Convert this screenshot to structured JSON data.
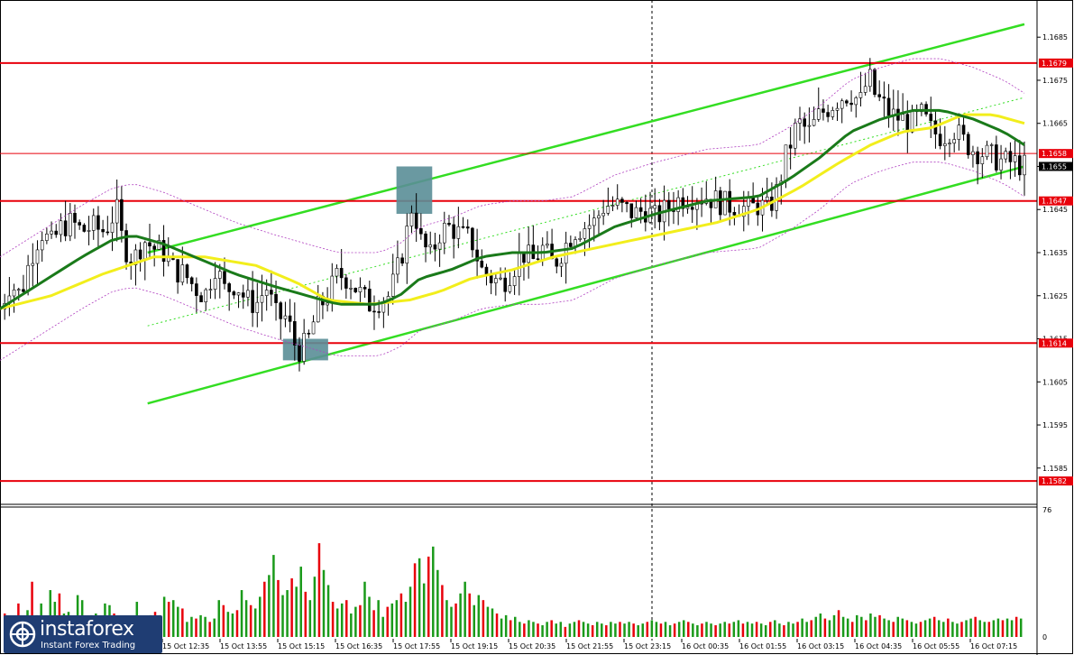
{
  "chart_data": {
    "type": "candlestick",
    "symbol_hint": "",
    "price_axis": {
      "min": 1.1577,
      "max": 1.1693,
      "ticks": [
        "1.1685",
        "1.1675",
        "1.1665",
        "1.1655",
        "1.1645",
        "1.1635",
        "1.1625",
        "1.1615",
        "1.1605",
        "1.1595",
        "1.1585"
      ]
    },
    "volume_axis": {
      "min": 0,
      "max": 76,
      "ticks": [
        "76",
        "0"
      ]
    },
    "time_labels": [
      "15 Oct 12:35",
      "15 Oct 13:55",
      "15 Oct 15:15",
      "15 Oct 16:35",
      "15 Oct 17:55",
      "15 Oct 19:15",
      "15 Oct 20:35",
      "15 Oct 21:55",
      "15 Oct 23:15",
      "16 Oct 00:35",
      "16 Oct 01:55",
      "16 Oct 03:15",
      "16 Oct 04:35",
      "16 Oct 05:55",
      "16 Oct 07:15"
    ],
    "horizontal_levels": [
      {
        "value": 1.1679,
        "label": "1.1679",
        "color": "#e8000b"
      },
      {
        "value": 1.1658,
        "label": "1.1658",
        "color": "#e8000b",
        "thin": true
      },
      {
        "value": 1.1647,
        "label": "1.1647",
        "color": "#e8000b"
      },
      {
        "value": 1.1614,
        "label": "1.1614",
        "color": "#e8000b"
      },
      {
        "value": 1.1582,
        "label": "1.1582",
        "color": "#e8000b"
      }
    ],
    "current_price": {
      "value": 1.1655,
      "label": "1.1655"
    },
    "channel": {
      "color": "#33dd22",
      "upper": [
        [
          0.1441,
          1.1635
        ],
        [
          1.0,
          1.1688
        ]
      ],
      "lower": [
        [
          0.1441,
          1.16
        ],
        [
          1.0,
          1.1655
        ]
      ],
      "mid_dotted": [
        [
          0.1441,
          1.1618
        ],
        [
          1.0,
          1.1671
        ]
      ]
    },
    "signal_zones": [
      {
        "x_frac": [
          0.387,
          0.4219
        ],
        "price": [
          1.1644,
          1.1655
        ],
        "color": "#5a8e97"
      },
      {
        "x_frac": [
          0.2762,
          0.3203
        ],
        "price": [
          1.161,
          1.1615
        ],
        "color": "#5a8e97"
      }
    ],
    "close_path": [
      [
        0.0,
        1.1622
      ],
      [
        0.01,
        1.1628
      ],
      [
        0.02,
        1.1625
      ],
      [
        0.03,
        1.1634
      ],
      [
        0.04,
        1.164
      ],
      [
        0.05,
        1.1637
      ],
      [
        0.06,
        1.1641
      ],
      [
        0.07,
        1.1642
      ],
      [
        0.08,
        1.164
      ],
      [
        0.09,
        1.1641
      ],
      [
        0.1,
        1.164
      ],
      [
        0.108,
        1.1642
      ],
      [
        0.113,
        1.1646
      ],
      [
        0.12,
        1.1637
      ],
      [
        0.13,
        1.1633
      ],
      [
        0.14,
        1.1638
      ],
      [
        0.15,
        1.1636
      ],
      [
        0.16,
        1.1635
      ],
      [
        0.17,
        1.1631
      ],
      [
        0.18,
        1.163
      ],
      [
        0.19,
        1.1627
      ],
      [
        0.2,
        1.1625
      ],
      [
        0.21,
        1.1632
      ],
      [
        0.22,
        1.1626
      ],
      [
        0.23,
        1.1628
      ],
      [
        0.24,
        1.1624
      ],
      [
        0.25,
        1.1623
      ],
      [
        0.26,
        1.1627
      ],
      [
        0.27,
        1.162
      ],
      [
        0.28,
        1.162
      ],
      [
        0.29,
        1.1612
      ],
      [
        0.3,
        1.1614
      ],
      [
        0.31,
        1.1622
      ],
      [
        0.32,
        1.1625
      ],
      [
        0.33,
        1.163
      ],
      [
        0.34,
        1.1629
      ],
      [
        0.35,
        1.1626
      ],
      [
        0.36,
        1.1623
      ],
      [
        0.37,
        1.1624
      ],
      [
        0.38,
        1.1625
      ],
      [
        0.388,
        1.1631
      ],
      [
        0.395,
        1.1637
      ],
      [
        0.403,
        1.1647
      ],
      [
        0.41,
        1.1638
      ],
      [
        0.42,
        1.1634
      ],
      [
        0.43,
        1.164
      ],
      [
        0.44,
        1.1641
      ],
      [
        0.45,
        1.1639
      ],
      [
        0.46,
        1.1638
      ],
      [
        0.47,
        1.1631
      ],
      [
        0.48,
        1.1629
      ],
      [
        0.49,
        1.1628
      ],
      [
        0.5,
        1.1631
      ],
      [
        0.51,
        1.1635
      ],
      [
        0.52,
        1.1633
      ],
      [
        0.53,
        1.1636
      ],
      [
        0.54,
        1.1632
      ],
      [
        0.55,
        1.1636
      ],
      [
        0.56,
        1.164
      ],
      [
        0.57,
        1.1641
      ],
      [
        0.58,
        1.1642
      ],
      [
        0.59,
        1.1646
      ],
      [
        0.6,
        1.1646
      ],
      [
        0.61,
        1.1645
      ],
      [
        0.62,
        1.1644
      ],
      [
        0.63,
        1.1645
      ],
      [
        0.64,
        1.1643
      ],
      [
        0.65,
        1.1645
      ],
      [
        0.66,
        1.1647
      ],
      [
        0.67,
        1.1648
      ],
      [
        0.68,
        1.1648
      ],
      [
        0.69,
        1.1648
      ],
      [
        0.7,
        1.1647
      ],
      [
        0.71,
        1.1646
      ],
      [
        0.72,
        1.1646
      ],
      [
        0.73,
        1.1645
      ],
      [
        0.74,
        1.1646
      ],
      [
        0.75,
        1.1645
      ],
      [
        0.76,
        1.165
      ],
      [
        0.765,
        1.1656
      ],
      [
        0.77,
        1.1659
      ],
      [
        0.775,
        1.1663
      ],
      [
        0.78,
        1.1665
      ],
      [
        0.79,
        1.1663
      ],
      [
        0.8,
        1.1667
      ],
      [
        0.81,
        1.1669
      ],
      [
        0.82,
        1.1671
      ],
      [
        0.83,
        1.1672
      ],
      [
        0.84,
        1.167
      ],
      [
        0.848,
        1.1676
      ],
      [
        0.855,
        1.1671
      ],
      [
        0.86,
        1.167
      ],
      [
        0.87,
        1.1667
      ],
      [
        0.88,
        1.1666
      ],
      [
        0.89,
        1.1665
      ],
      [
        0.9,
        1.1667
      ],
      [
        0.91,
        1.1663
      ],
      [
        0.92,
        1.1662
      ],
      [
        0.93,
        1.1664
      ],
      [
        0.94,
        1.1661
      ],
      [
        0.95,
        1.1659
      ],
      [
        0.96,
        1.1658
      ],
      [
        0.97,
        1.1657
      ],
      [
        0.98,
        1.1656
      ],
      [
        0.99,
        1.1656
      ],
      [
        1.0,
        1.1655
      ]
    ],
    "ma_green": [
      [
        0.0,
        1.1622
      ],
      [
        0.04,
        1.1628
      ],
      [
        0.08,
        1.1634
      ],
      [
        0.11,
        1.1638
      ],
      [
        0.13,
        1.1639
      ],
      [
        0.16,
        1.1637
      ],
      [
        0.19,
        1.1634
      ],
      [
        0.23,
        1.163
      ],
      [
        0.27,
        1.1627
      ],
      [
        0.3,
        1.1625
      ],
      [
        0.33,
        1.1623
      ],
      [
        0.37,
        1.1623
      ],
      [
        0.39,
        1.1625
      ],
      [
        0.41,
        1.1629
      ],
      [
        0.44,
        1.1631
      ],
      [
        0.47,
        1.1634
      ],
      [
        0.5,
        1.1635
      ],
      [
        0.53,
        1.1635
      ],
      [
        0.56,
        1.1636
      ],
      [
        0.6,
        1.1641
      ],
      [
        0.64,
        1.1644
      ],
      [
        0.69,
        1.1647
      ],
      [
        0.74,
        1.1648
      ],
      [
        0.77,
        1.1652
      ],
      [
        0.8,
        1.1657
      ],
      [
        0.83,
        1.1663
      ],
      [
        0.86,
        1.1666
      ],
      [
        0.89,
        1.1668
      ],
      [
        0.92,
        1.1668
      ],
      [
        0.95,
        1.1666
      ],
      [
        0.98,
        1.1663
      ],
      [
        1.0,
        1.166
      ]
    ],
    "ma_yellow": [
      [
        0.0,
        1.1622
      ],
      [
        0.05,
        1.1625
      ],
      [
        0.1,
        1.163
      ],
      [
        0.15,
        1.1634
      ],
      [
        0.2,
        1.1634
      ],
      [
        0.25,
        1.1632
      ],
      [
        0.29,
        1.1628
      ],
      [
        0.32,
        1.1624
      ],
      [
        0.36,
        1.1623
      ],
      [
        0.4,
        1.1624
      ],
      [
        0.43,
        1.1626
      ],
      [
        0.46,
        1.1629
      ],
      [
        0.5,
        1.1631
      ],
      [
        0.54,
        1.1634
      ],
      [
        0.58,
        1.1636
      ],
      [
        0.62,
        1.1638
      ],
      [
        0.66,
        1.164
      ],
      [
        0.7,
        1.1642
      ],
      [
        0.74,
        1.1645
      ],
      [
        0.78,
        1.165
      ],
      [
        0.82,
        1.1656
      ],
      [
        0.85,
        1.166
      ],
      [
        0.88,
        1.1663
      ],
      [
        0.91,
        1.1664
      ],
      [
        0.94,
        1.1667
      ],
      [
        0.97,
        1.1667
      ],
      [
        1.0,
        1.1665
      ]
    ],
    "volume_series": [
      14,
      9,
      7,
      20,
      11,
      16,
      33,
      13,
      20,
      7,
      28,
      21,
      26,
      14,
      15,
      12,
      25,
      22,
      11,
      13,
      14,
      9,
      20,
      19,
      14,
      11,
      9,
      10,
      12,
      21,
      10,
      9,
      13,
      15,
      13,
      24,
      21,
      22,
      18,
      17,
      9,
      12,
      11,
      13,
      12,
      9,
      11,
      22,
      19,
      15,
      14,
      16,
      28,
      22,
      19,
      17,
      24,
      33,
      37,
      49,
      34,
      25,
      28,
      35,
      30,
      42,
      27,
      22,
      36,
      56,
      40,
      31,
      21,
      17,
      20,
      22,
      14,
      18,
      19,
      33,
      24,
      16,
      22,
      12,
      18,
      20,
      22,
      26,
      21,
      30,
      44,
      47,
      32,
      48,
      54,
      40,
      31,
      22,
      18,
      20,
      26,
      33,
      26,
      19,
      25,
      22,
      18,
      17,
      14,
      11,
      13,
      10,
      12,
      9,
      8,
      10,
      9,
      8,
      7,
      9,
      10,
      8,
      9,
      6,
      8,
      9,
      10,
      9,
      8,
      7,
      9,
      8,
      7,
      9,
      8,
      9,
      8,
      9,
      8,
      7,
      8,
      9,
      10,
      9,
      8,
      9,
      7,
      8,
      9,
      10,
      9,
      8,
      7,
      8,
      9,
      8,
      7,
      8,
      9,
      8,
      9,
      10,
      8,
      9,
      8,
      9,
      8,
      7,
      9,
      10,
      8,
      7,
      9,
      8,
      9,
      11,
      9,
      10,
      12,
      14,
      11,
      10,
      13,
      16,
      12,
      11,
      9,
      13,
      12,
      10,
      14,
      12,
      13,
      11,
      10,
      9,
      12,
      11,
      10,
      9,
      8,
      9,
      10,
      11,
      12,
      10,
      9,
      11,
      9,
      8,
      9,
      10,
      11,
      12,
      10,
      9,
      9,
      10,
      11,
      10,
      11,
      10,
      12,
      11
    ]
  },
  "branding": {
    "name": "instaforex",
    "tagline": "Instant Forex Trading",
    "bg_color": "#1f3d73"
  }
}
